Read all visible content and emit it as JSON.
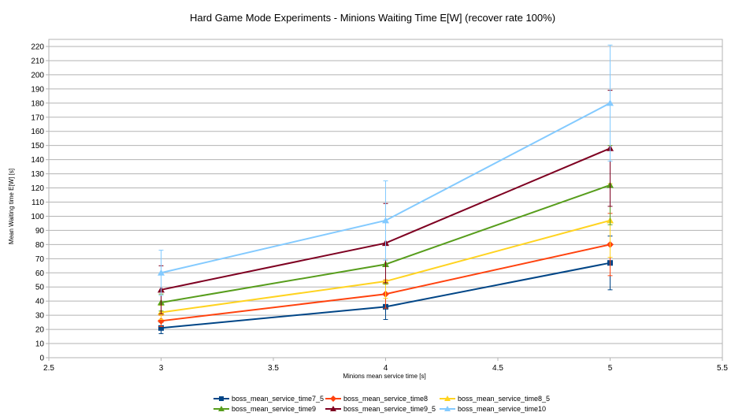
{
  "chart_data": {
    "type": "line",
    "title": "Hard Game Mode Experiments - Minions Waiting Time E[W] (recover rate 100%)",
    "xlabel": "Minions mean service time [s]",
    "ylabel": "Mean Waiting time E[W] [s]",
    "xlim": [
      2.5,
      5.5
    ],
    "ylim": [
      0,
      220
    ],
    "x_ticks": [
      "2.5",
      "3",
      "3.5",
      "4",
      "4.5",
      "5",
      "5.5"
    ],
    "y_ticks": [
      "0",
      "10",
      "20",
      "30",
      "40",
      "50",
      "60",
      "70",
      "80",
      "90",
      "100",
      "110",
      "120",
      "130",
      "140",
      "150",
      "160",
      "170",
      "180",
      "190",
      "200",
      "210",
      "220"
    ],
    "grid": "horizontal",
    "legend_position": "bottom",
    "x": [
      3,
      4,
      5
    ],
    "series": [
      {
        "name": "boss_mean_service_time7_5",
        "color": "#004586",
        "marker": "square",
        "values": [
          21,
          36,
          67
        ],
        "err": [
          4,
          9,
          19
        ]
      },
      {
        "name": "boss_mean_service_time8",
        "color": "#ff420e",
        "marker": "diamond",
        "values": [
          26,
          45,
          80
        ],
        "err": [
          4,
          10,
          22
        ]
      },
      {
        "name": "boss_mean_service_time8_5",
        "color": "#ffd320",
        "marker": "triangle",
        "values": [
          32,
          54,
          97
        ],
        "err": [
          5,
          12,
          26
        ]
      },
      {
        "name": "boss_mean_service_time9",
        "color": "#579d1c",
        "marker": "triangle",
        "values": [
          39,
          66,
          122
        ],
        "err": [
          6,
          14,
          28
        ]
      },
      {
        "name": "boss_mean_service_time9_5",
        "color": "#7e0021",
        "marker": "triangle",
        "values": [
          48,
          81,
          148
        ],
        "err": [
          17,
          28,
          41
        ]
      },
      {
        "name": "boss_mean_service_time10",
        "color": "#83caff",
        "marker": "triangle",
        "values": [
          60,
          97,
          180
        ],
        "err": [
          16,
          28,
          41
        ]
      }
    ]
  }
}
